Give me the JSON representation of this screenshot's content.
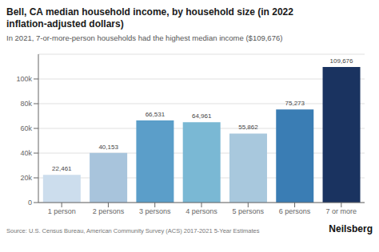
{
  "chart_data": {
    "type": "bar",
    "title": "Bell, CA median household income, by household size (in 2022\ninflation-adjusted dollars)",
    "subtitle": "In 2021, 7-or-more-person households had the highest median income ($109,676)",
    "categories": [
      "1 person",
      "2 persons",
      "3 persons",
      "4 persons",
      "5 persons",
      "6 persons",
      "7 or more"
    ],
    "values": [
      22461,
      40153,
      66531,
      64961,
      55862,
      75273,
      109676
    ],
    "value_labels": [
      "22,461",
      "40,153",
      "66,531",
      "64,961",
      "55,862",
      "75,273",
      "109,676"
    ],
    "data_labels": true,
    "colors": [
      "#ccdded",
      "#a8c4dc",
      "#5b9ec9",
      "#7ab8d4",
      "#a8c8dd",
      "#3a7db4",
      "#1a3360"
    ],
    "ylim": [
      0,
      120000
    ],
    "yticks": [
      0,
      {
        "value": 20000,
        "label": "20k"
      },
      {
        "value": 40000,
        "label": "40k"
      },
      {
        "value": 60000,
        "label": "60k"
      },
      {
        "value": 80000,
        "label": "80k"
      },
      {
        "value": 100000,
        "label": "100k"
      }
    ],
    "grid": true,
    "annotations": [
      "Source: U.S. Census Bureau, American Community Survey (ACS) 2017-2021 5-Year Estimates",
      "Neilsberg"
    ]
  }
}
